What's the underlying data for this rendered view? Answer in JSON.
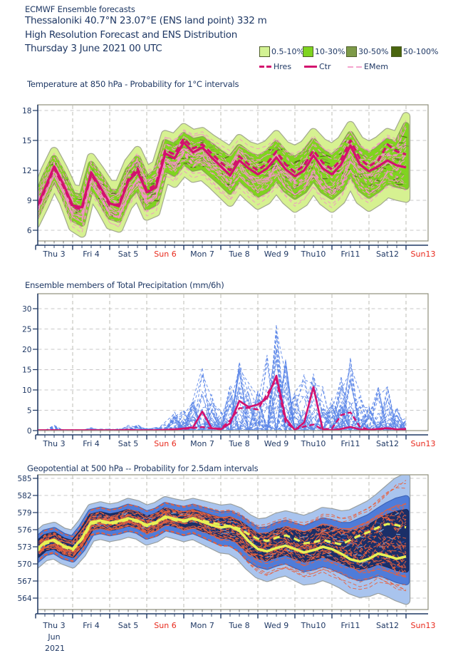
{
  "header": {
    "line1": "ECMWF Ensemble forecasts",
    "line2": "Thessaloniki 40.7°N 23.07°E (ENS land point) 332 m",
    "line3": "High Resolution Forecast and ENS Distribution",
    "line4": "Thursday  3 June 2021 00 UTC"
  },
  "legend": {
    "bands": [
      {
        "label": "0.5-10%",
        "color": "#d3f293"
      },
      {
        "label": "10-30%",
        "color": "#7fd41f"
      },
      {
        "label": "30-50%",
        "color": "#7d9a48"
      },
      {
        "label": "50-100%",
        "color": "#49650e"
      }
    ],
    "lines": [
      {
        "label": "Hres",
        "style": "dashed-bold",
        "color": "#d3116e"
      },
      {
        "label": "Ctr",
        "style": "solid-bold",
        "color": "#d3116e"
      },
      {
        "label": "EMem",
        "style": "dashed-thin",
        "color": "#f4a3cd"
      }
    ]
  },
  "axis": {
    "days": [
      {
        "label": "Thu 3",
        "red": false
      },
      {
        "label": "Fri 4",
        "red": false
      },
      {
        "label": "Sat 5",
        "red": false
      },
      {
        "label": "Sun 6",
        "red": true
      },
      {
        "label": "Mon 7",
        "red": false
      },
      {
        "label": "Tue 8",
        "red": false
      },
      {
        "label": "Wed 9",
        "red": false
      },
      {
        "label": "Thu10",
        "red": false
      },
      {
        "label": "Fri11",
        "red": false
      },
      {
        "label": "Sat12",
        "red": false
      },
      {
        "label": "Sun13",
        "red": true
      }
    ],
    "month": "Jun",
    "year": "2021",
    "text_color": "#1f3864",
    "red_color": "#e8291c"
  },
  "chart_data": [
    {
      "type": "area",
      "subtype": "ensemble-plume-with-probability-bands",
      "title": "Temperature at 850 hPa - Probability for 1°C intervals",
      "unit": "°C",
      "x_step_hours": 6,
      "x_start": "Thu 3 June 2021 00 UTC",
      "x_end": "Sun 13 June 2021 00 UTC",
      "categories": [
        "Thu 3",
        "Fri 4",
        "Sat 5",
        "Sun 6",
        "Mon 7",
        "Tue 8",
        "Wed 9",
        "Thu10",
        "Fri11",
        "Sat12",
        "Sun13"
      ],
      "yticks": [
        18,
        15,
        12,
        9,
        6
      ],
      "ylim": [
        4.9,
        18.6
      ],
      "series": {
        "ctr": [
          8.0,
          10.2,
          12.4,
          10.6,
          8.5,
          8.3,
          11.8,
          10.3,
          8.7,
          8.4,
          10.9,
          11.9,
          9.8,
          10.3,
          13.7,
          13.2,
          14.8,
          13.8,
          14.3,
          13.3,
          12.4,
          11.5,
          13.0,
          12.2,
          11.6,
          12.2,
          13.3,
          12.1,
          11.4,
          12.0,
          13.5,
          12.2,
          11.6,
          12.6,
          14.5,
          12.6,
          11.9,
          12.4,
          13.0,
          12.5,
          12.3
        ],
        "hres": [
          7.8,
          10.0,
          12.2,
          10.4,
          8.3,
          8.1,
          11.6,
          10.1,
          8.5,
          8.6,
          11.1,
          12.2,
          10.0,
          10.6,
          14.0,
          13.6,
          15.2,
          14.2,
          14.6,
          13.7,
          12.8,
          12.0,
          13.4,
          12.6,
          12.0,
          12.7,
          13.9,
          12.6,
          11.8,
          12.5,
          14.0,
          12.8,
          12.1,
          13.1,
          15.0,
          13.2,
          12.4,
          13.0,
          14.6,
          13.9,
          13.6
        ],
        "band_0p5_10_hi": [
          9.6,
          12.0,
          13.9,
          12.2,
          10.2,
          10.0,
          13.3,
          12.0,
          10.6,
          10.6,
          12.8,
          14.0,
          12.0,
          12.6,
          15.6,
          15.3,
          16.3,
          15.7,
          15.9,
          15.2,
          14.6,
          14.0,
          15.2,
          14.5,
          14.2,
          14.6,
          15.6,
          14.5,
          14.1,
          14.6,
          15.8,
          14.8,
          14.3,
          15.0,
          16.5,
          15.0,
          14.5,
          15.0,
          15.8,
          15.5,
          17.4
        ],
        "band_0p5_10_lo": [
          6.6,
          8.5,
          10.6,
          8.8,
          6.3,
          5.7,
          9.6,
          8.2,
          6.5,
          6.2,
          8.4,
          9.5,
          7.4,
          7.8,
          11.2,
          10.7,
          11.9,
          11.2,
          11.4,
          10.6,
          9.7,
          8.8,
          10.2,
          9.3,
          8.5,
          9.0,
          10.2,
          9.0,
          8.2,
          8.8,
          10.2,
          8.9,
          8.2,
          9.0,
          10.8,
          9.0,
          8.3,
          8.9,
          9.7,
          9.4,
          9.2
        ],
        "band_10_30_hi": [
          9.0,
          11.3,
          13.2,
          11.5,
          9.5,
          9.3,
          12.6,
          11.3,
          9.8,
          9.8,
          12.0,
          13.2,
          11.1,
          11.8,
          14.8,
          14.4,
          15.5,
          14.9,
          15.1,
          14.4,
          13.7,
          13.1,
          14.3,
          13.6,
          13.2,
          13.7,
          14.7,
          13.6,
          13.1,
          13.7,
          14.9,
          13.8,
          13.3,
          14.1,
          15.6,
          14.1,
          13.5,
          14.1,
          14.9,
          14.6,
          16.5
        ],
        "band_10_30_lo": [
          7.3,
          9.3,
          11.4,
          9.6,
          7.2,
          6.7,
          10.5,
          9.1,
          7.4,
          7.1,
          9.3,
          10.4,
          8.3,
          8.8,
          12.2,
          11.7,
          12.9,
          12.2,
          12.4,
          11.6,
          10.8,
          9.9,
          11.3,
          10.4,
          9.6,
          10.1,
          11.3,
          10.1,
          9.4,
          10.0,
          11.3,
          10.0,
          9.4,
          10.2,
          11.9,
          10.2,
          9.5,
          10.1,
          10.9,
          10.6,
          10.4
        ]
      },
      "colors": {
        "band_outer": "#d6f191",
        "band_inner": "#7fd41f",
        "speckle_30_50": "#7d9a40",
        "speckle_50_100": "#50691a",
        "emem": "#f292c6",
        "ctr": "#d3116e",
        "hres": "#d3116e"
      },
      "note": "~50 pink dashed ensemble member lines fill the probability bands"
    },
    {
      "type": "line",
      "subtype": "ensemble-precipitation-spaghetti",
      "title": "Ensemble members of Total Precipitation (mm/6h)",
      "unit": "mm/6h",
      "x_step_hours": 6,
      "categories": [
        "Thu 3",
        "Fri 4",
        "Sat 5",
        "Sun 6",
        "Mon 7",
        "Tue 8",
        "Wed 9",
        "Thu10",
        "Fri11",
        "Sat12",
        "Sun13"
      ],
      "yticks": [
        0,
        5,
        10,
        15,
        20,
        25,
        30
      ],
      "ylim": [
        0,
        33.7
      ],
      "series": {
        "ctr": [
          0.1,
          0.1,
          0.1,
          0.1,
          0.1,
          0.1,
          0.1,
          0.1,
          0.1,
          0.1,
          0.2,
          0.1,
          0.1,
          0.1,
          0.2,
          0.3,
          0.5,
          0.8,
          4.7,
          0.6,
          0.3,
          1.8,
          7.3,
          5.8,
          6.4,
          8.0,
          13.5,
          3.0,
          0.1,
          2.0,
          10.7,
          0.3,
          0.1,
          0.4,
          0.9,
          0.3,
          0.2,
          0.4,
          0.6,
          0.3,
          0.4
        ],
        "hres": [
          0.0,
          0.0,
          0.1,
          0.0,
          0.0,
          0.0,
          0.1,
          0.0,
          0.0,
          0.0,
          0.1,
          0.1,
          0.0,
          0.1,
          0.2,
          0.3,
          0.4,
          0.6,
          0.9,
          0.5,
          0.5,
          2.5,
          5.5,
          5.6,
          5.2,
          9.0,
          12.5,
          2.0,
          0.3,
          1.0,
          1.5,
          0.3,
          0.5,
          3.8,
          4.5,
          1.0,
          0.2,
          0.3,
          0.5,
          0.3,
          0.2
        ],
        "member_peak_envelope": [
          0.3,
          0.2,
          1.4,
          0.4,
          0.3,
          0.2,
          0.8,
          0.4,
          0.4,
          0.6,
          1.3,
          1.6,
          0.6,
          0.9,
          2.2,
          4.6,
          5.0,
          8.0,
          16.0,
          9.0,
          5.0,
          12.0,
          17.0,
          14.0,
          10.0,
          20.0,
          29.0,
          18.0,
          11.0,
          14.0,
          17.0,
          11.0,
          8.0,
          15.0,
          19.0,
          10.0,
          6.0,
          12.0,
          11.0,
          6.0,
          3.0
        ]
      },
      "colors": {
        "member": "#5b86e8",
        "ctr": "#d3116e",
        "hres": "#d3116e"
      },
      "note": "~50 blue dashed ensemble members; max spike ≈29 mm near Wed 9 12UTC"
    },
    {
      "type": "area",
      "subtype": "ensemble-plume-with-probability-bands",
      "title": "Geopotential at 500 hPa -- Probability for 2.5dam intervals",
      "unit": "dam",
      "x_step_hours": 6,
      "categories": [
        "Thu 3",
        "Fri 4",
        "Sat 5",
        "Sun 6",
        "Mon 7",
        "Tue 8",
        "Wed 9",
        "Thu10",
        "Fri11",
        "Sat12",
        "Sun13"
      ],
      "yticks": [
        585,
        582,
        579,
        576,
        573,
        570,
        567,
        564
      ],
      "ylim": [
        562.0,
        585.6
      ],
      "series": {
        "ctr": [
          572.3,
          573.8,
          574.2,
          573.2,
          572.6,
          574.5,
          577.3,
          577.6,
          577.2,
          577.5,
          578.0,
          577.6,
          576.8,
          577.3,
          578.3,
          577.9,
          577.6,
          578.0,
          577.4,
          576.8,
          576.4,
          576.6,
          575.8,
          574.0,
          572.6,
          572.2,
          572.8,
          573.2,
          572.6,
          572.0,
          572.4,
          573.0,
          572.6,
          571.8,
          570.8,
          570.4,
          570.9,
          571.8,
          571.4,
          570.9,
          571.3
        ],
        "hres": [
          572.0,
          573.5,
          574.0,
          573.0,
          572.4,
          574.3,
          577.0,
          577.4,
          577.0,
          577.3,
          577.8,
          577.4,
          576.6,
          577.1,
          578.1,
          577.7,
          577.4,
          577.8,
          577.6,
          577.2,
          576.9,
          576.6,
          576.2,
          575.2,
          574.4,
          574.0,
          574.6,
          575.0,
          574.4,
          573.6,
          573.8,
          574.2,
          573.8,
          573.4,
          574.2,
          575.0,
          575.6,
          576.4,
          577.0,
          576.8,
          576.4
        ],
        "band_outer_hi": [
          574.8,
          576.2,
          576.6,
          575.6,
          575.2,
          577.2,
          579.8,
          580.2,
          579.8,
          580.1,
          580.8,
          580.4,
          579.6,
          580.1,
          581.1,
          580.7,
          580.4,
          580.8,
          580.4,
          580.0,
          579.6,
          579.8,
          579.2,
          578.0,
          577.2,
          577.4,
          578.2,
          578.6,
          578.2,
          577.8,
          578.4,
          579.2,
          579.0,
          578.6,
          578.8,
          579.6,
          580.4,
          581.6,
          583.0,
          584.4,
          585.2
        ],
        "band_outer_lo": [
          569.8,
          571.2,
          571.6,
          570.6,
          570.0,
          571.8,
          574.6,
          575.0,
          574.6,
          574.9,
          575.4,
          575.0,
          574.0,
          574.5,
          575.5,
          575.1,
          574.6,
          575.0,
          574.2,
          573.4,
          572.6,
          572.4,
          571.4,
          569.6,
          568.2,
          567.6,
          568.2,
          568.6,
          567.8,
          567.0,
          567.2,
          567.8,
          567.2,
          566.4,
          565.4,
          564.8,
          565.0,
          565.6,
          565.0,
          564.2,
          563.6
        ],
        "band_mid_hi": [
          574.0,
          575.4,
          575.8,
          574.8,
          574.3,
          576.3,
          579.0,
          579.4,
          579.0,
          579.3,
          579.9,
          579.5,
          578.7,
          579.2,
          580.2,
          579.8,
          579.5,
          579.9,
          579.4,
          578.9,
          578.5,
          578.7,
          578.0,
          576.8,
          575.8,
          575.9,
          576.7,
          577.1,
          576.6,
          576.1,
          576.7,
          577.5,
          577.2,
          576.7,
          576.7,
          577.4,
          578.1,
          579.2,
          580.2,
          581.0,
          581.4
        ],
        "band_mid_lo": [
          570.6,
          572.0,
          572.4,
          571.4,
          570.9,
          572.7,
          575.5,
          575.9,
          575.5,
          575.8,
          576.3,
          575.9,
          574.9,
          575.4,
          576.4,
          576.0,
          575.5,
          575.9,
          575.2,
          574.5,
          573.8,
          573.7,
          572.8,
          571.1,
          570.0,
          569.6,
          570.2,
          570.6,
          569.9,
          569.2,
          569.5,
          570.1,
          569.6,
          568.9,
          568.1,
          567.6,
          567.9,
          568.5,
          568.0,
          567.3,
          566.9
        ],
        "band_inner_hi": [
          573.3,
          574.7,
          575.1,
          574.1,
          573.6,
          575.6,
          578.3,
          578.7,
          578.3,
          578.6,
          579.1,
          578.7,
          577.9,
          578.4,
          579.4,
          579.0,
          578.7,
          579.1,
          578.6,
          578.1,
          577.7,
          577.8,
          577.1,
          575.9,
          574.8,
          574.8,
          575.6,
          576.0,
          575.5,
          575.0,
          575.6,
          576.3,
          576.0,
          575.5,
          575.3,
          575.8,
          576.4,
          577.4,
          578.2,
          578.8,
          579.1
        ],
        "band_inner_lo": [
          571.3,
          572.7,
          573.1,
          572.1,
          571.6,
          573.6,
          576.3,
          576.7,
          576.3,
          576.6,
          577.1,
          576.7,
          575.9,
          576.4,
          577.4,
          577.0,
          576.5,
          576.9,
          576.2,
          575.6,
          575.0,
          574.8,
          574.0,
          572.4,
          571.4,
          571.0,
          571.6,
          572.0,
          571.4,
          570.8,
          571.1,
          571.7,
          571.2,
          570.6,
          569.9,
          569.5,
          569.8,
          570.4,
          569.9,
          569.3,
          569.0
        ]
      },
      "colors": {
        "band_outer": "#a9c4ee",
        "band_mid": "#4f7cd9",
        "band_inner": "#1b2f68",
        "emem": "#e8613d",
        "ctr": "#e7f155",
        "hres": "#e7f155"
      },
      "note": "~50 orange dashed ensemble member lines fill the bands"
    }
  ]
}
